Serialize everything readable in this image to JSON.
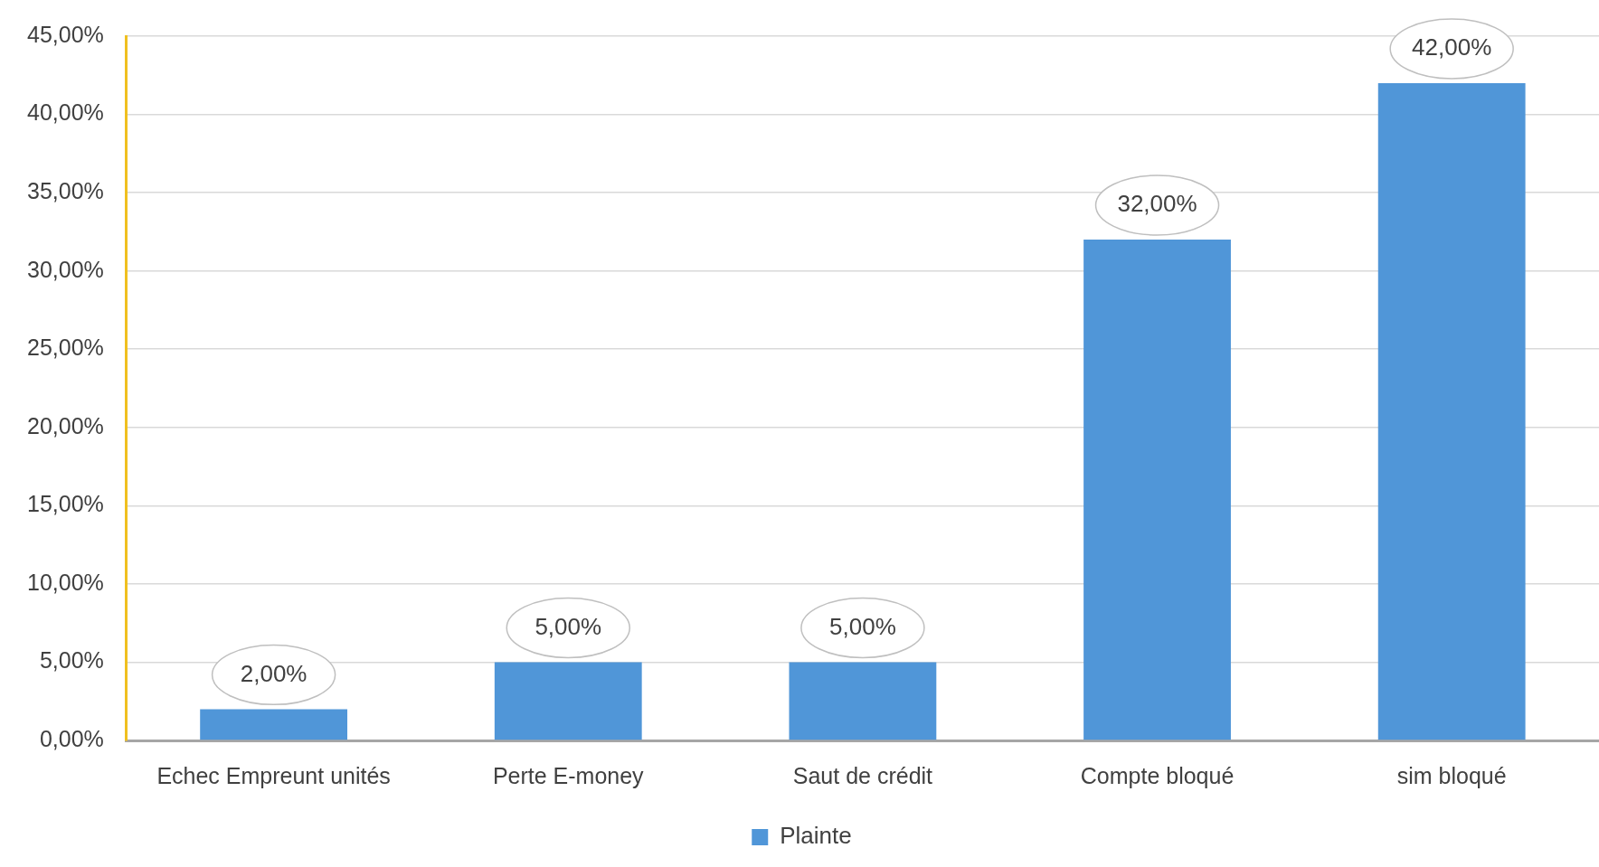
{
  "chart_data": {
    "type": "bar",
    "categories": [
      "Echec Empreunt unités",
      "Perte E-money",
      "Saut de crédit",
      "Compte bloqué",
      "sim bloqué"
    ],
    "series": [
      {
        "name": "Plainte",
        "color": "#5096d8",
        "values": [
          2,
          5,
          5,
          32,
          42
        ],
        "value_labels": [
          "2,00%",
          "5,00%",
          "5,00%",
          "32,00%",
          "42,00%"
        ]
      }
    ],
    "ylim": [
      0,
      45
    ],
    "yticks": [
      {
        "value": 0,
        "label": "0,00%"
      },
      {
        "value": 5,
        "label": "5,00%"
      },
      {
        "value": 10,
        "label": "10,00%"
      },
      {
        "value": 15,
        "label": "15,00%"
      },
      {
        "value": 20,
        "label": "20,00%"
      },
      {
        "value": 25,
        "label": "25,00%"
      },
      {
        "value": 30,
        "label": "30,00%"
      },
      {
        "value": 35,
        "label": "35,00%"
      },
      {
        "value": 40,
        "label": "40,00%"
      },
      {
        "value": 45,
        "label": "45,00%"
      }
    ],
    "grid": "y",
    "legend": "bottom"
  }
}
